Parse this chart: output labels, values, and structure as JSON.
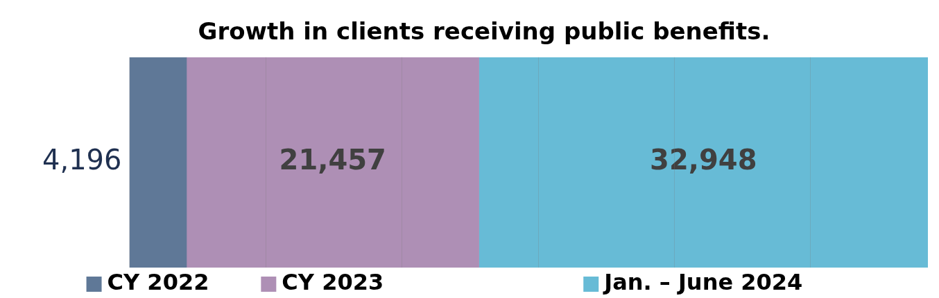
{
  "chart_data": {
    "type": "bar",
    "orientation": "horizontal",
    "stacked": true,
    "title": "Growth in clients receiving public benefits.",
    "categories": [
      "4,196"
    ],
    "series": [
      {
        "name": "CY 2022",
        "color": "#5f7897",
        "values": [
          4196
        ],
        "value_labels": [
          null
        ]
      },
      {
        "name": "CY 2023",
        "color": "#ae8fb5",
        "values": [
          21457
        ],
        "value_labels": [
          "21,457"
        ]
      },
      {
        "name": "Jan. – June 2024",
        "color": "#67bbd6",
        "values": [
          32948
        ],
        "value_labels": [
          "32,948"
        ]
      }
    ],
    "xlim": [
      0,
      58601
    ],
    "xticks": [
      {
        "value": 0,
        "label": null
      },
      {
        "value": 10000,
        "label": null
      },
      {
        "value": 20000,
        "label": null
      },
      {
        "value": 30000,
        "label": null
      },
      {
        "value": 40000,
        "label": null
      },
      {
        "value": 50000,
        "label": null
      }
    ],
    "tick_labels": "y",
    "grid": "x",
    "legend": "bottom"
  }
}
